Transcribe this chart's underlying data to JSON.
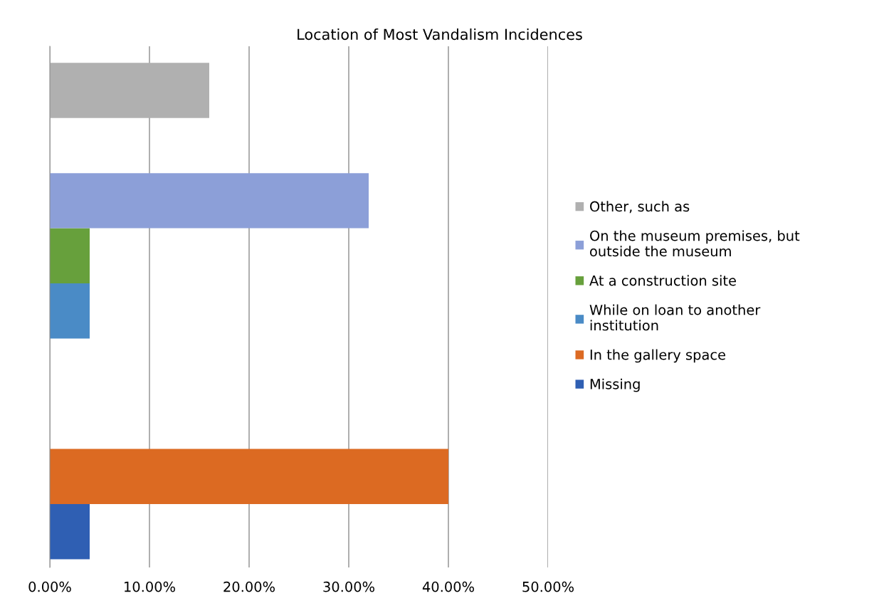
{
  "chart_data": {
    "type": "bar",
    "orientation": "horizontal",
    "title": "Location of Most Vandalism Incidences",
    "categories": [
      null,
      null,
      null,
      null,
      null,
      null,
      null,
      null,
      null
    ],
    "series": [
      {
        "name": "Missing",
        "color": "#2f5fb3",
        "values": [
          null,
          null,
          null,
          null,
          null,
          null,
          null,
          null,
          0.04
        ]
      },
      {
        "name": "In the gallery space",
        "color": "#dc6a22",
        "values": [
          null,
          null,
          null,
          null,
          null,
          null,
          null,
          0.4,
          null
        ]
      },
      {
        "name": "While on loan to another\ninstitution",
        "color": "#4a8bc6",
        "values": [
          null,
          null,
          null,
          null,
          0.04,
          null,
          null,
          null,
          null
        ]
      },
      {
        "name": "At a construction site",
        "color": "#67a03c",
        "values": [
          null,
          null,
          null,
          0.04,
          null,
          null,
          null,
          null,
          null
        ]
      },
      {
        "name": "On the museum premises, but\noutside the museum",
        "color": "#8c9fd8",
        "values": [
          null,
          null,
          0.32,
          null,
          null,
          null,
          null,
          null,
          null
        ]
      },
      {
        "name": "Other, such as",
        "color": "#b0b0b0",
        "values": [
          0.16,
          null,
          null,
          null,
          null,
          null,
          null,
          null,
          null
        ]
      }
    ],
    "xlim": [
      0,
      0.5
    ],
    "xticks": [
      {
        "value": 0,
        "label": "0.00%"
      },
      {
        "value": 0.1,
        "label": "10.00%"
      },
      {
        "value": 0.2,
        "label": "20.00%"
      },
      {
        "value": 0.3,
        "label": "30.00%"
      },
      {
        "value": 0.4,
        "label": "40.00%"
      },
      {
        "value": 0.5,
        "label": "50.00%"
      }
    ],
    "grid": "x",
    "legend": "right"
  }
}
